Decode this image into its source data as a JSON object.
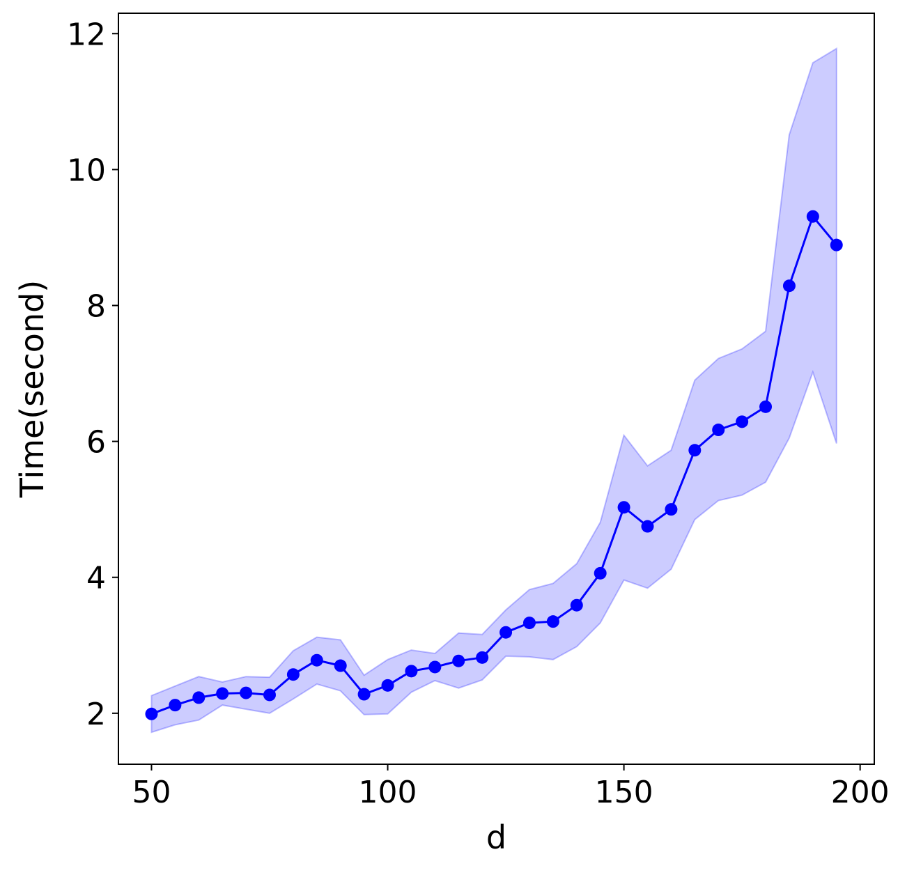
{
  "chart_data": {
    "type": "line",
    "title": "",
    "xlabel": "d",
    "ylabel": "Time(second)",
    "xlim": [
      43,
      203
    ],
    "ylim": [
      1.25,
      12.3
    ],
    "xticks": [
      50,
      100,
      150,
      200
    ],
    "yticks": [
      2,
      4,
      6,
      8,
      10,
      12
    ],
    "grid": false,
    "legend": "none",
    "series": [
      {
        "color": "#0000ff",
        "band_color": "#0000ff",
        "x": [
          50,
          55,
          60,
          65,
          70,
          75,
          80,
          85,
          90,
          95,
          100,
          105,
          110,
          115,
          120,
          125,
          130,
          135,
          140,
          145,
          150,
          155,
          160,
          165,
          170,
          175,
          180,
          185,
          190,
          195
        ],
        "y": [
          1.99,
          2.12,
          2.23,
          2.29,
          2.3,
          2.27,
          2.57,
          2.78,
          2.7,
          2.28,
          2.41,
          2.62,
          2.68,
          2.77,
          2.82,
          3.19,
          3.33,
          3.35,
          3.59,
          4.06,
          5.03,
          4.75,
          5.0,
          5.87,
          6.17,
          6.29,
          6.51,
          8.29,
          9.31,
          8.89
        ],
        "lower": [
          1.72,
          1.83,
          1.9,
          2.12,
          2.06,
          2.0,
          2.21,
          2.43,
          2.33,
          1.98,
          1.99,
          2.31,
          2.48,
          2.37,
          2.49,
          2.84,
          2.83,
          2.79,
          2.98,
          3.33,
          3.96,
          3.84,
          4.12,
          4.85,
          5.13,
          5.21,
          5.4,
          6.05,
          7.02,
          5.97
        ],
        "upper": [
          2.26,
          2.4,
          2.54,
          2.46,
          2.54,
          2.53,
          2.92,
          3.12,
          3.08,
          2.56,
          2.79,
          2.93,
          2.88,
          3.18,
          3.16,
          3.52,
          3.82,
          3.91,
          4.2,
          4.81,
          6.09,
          5.64,
          5.87,
          6.9,
          7.22,
          7.36,
          7.62,
          10.51,
          11.57,
          11.78
        ]
      }
    ]
  }
}
